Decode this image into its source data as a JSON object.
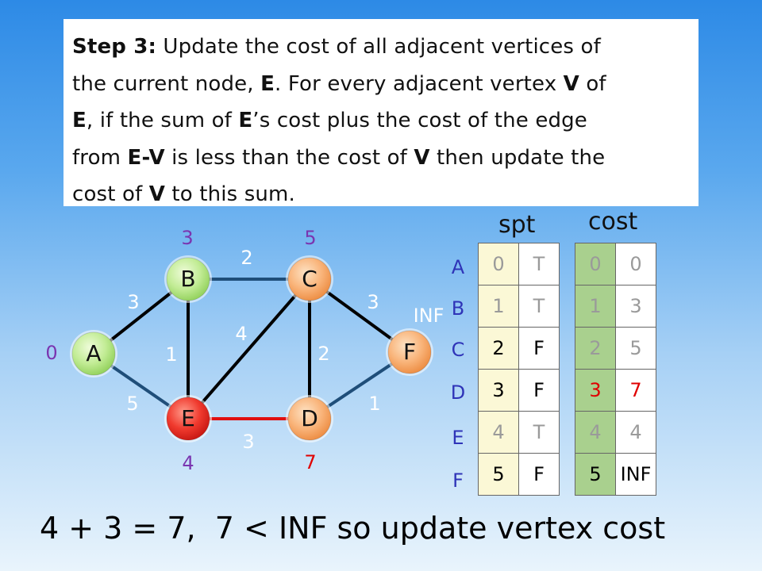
{
  "step": {
    "title": "Step 3:",
    "l1_a": " Update the cost of all adjacent vertices of",
    "l2_a": "the current node, ",
    "l2_b": "E",
    "l2_c": ". For every adjacent vertex ",
    "l2_d": "V",
    "l2_e": " of",
    "l3_a": "E",
    "l3_b": ", if the sum of ",
    "l3_c": "E",
    "l3_d": "’s cost plus the cost of the edge",
    "l4_a": "from ",
    "l4_b": "E-V",
    "l4_c": " is less than the cost of ",
    "l4_d": "V",
    "l4_e": " then update the",
    "l5_a": "cost of ",
    "l5_b": "V",
    "l5_c": " to this sum."
  },
  "graph": {
    "nodes": [
      {
        "id": "A",
        "cost": "0"
      },
      {
        "id": "B",
        "cost": "3"
      },
      {
        "id": "C",
        "cost": "5"
      },
      {
        "id": "D",
        "cost": "7"
      },
      {
        "id": "E",
        "cost": "4"
      },
      {
        "id": "F",
        "cost": "INF"
      }
    ],
    "edges": [
      {
        "from": "A",
        "to": "B",
        "weight": "3"
      },
      {
        "from": "A",
        "to": "E",
        "weight": "5"
      },
      {
        "from": "B",
        "to": "C",
        "weight": "2"
      },
      {
        "from": "B",
        "to": "E",
        "weight": "1"
      },
      {
        "from": "E",
        "to": "C",
        "weight": "4"
      },
      {
        "from": "C",
        "to": "D",
        "weight": "2"
      },
      {
        "from": "C",
        "to": "F",
        "weight": "3"
      },
      {
        "from": "E",
        "to": "D",
        "weight": "3"
      },
      {
        "from": "D",
        "to": "F",
        "weight": "1"
      }
    ],
    "colors": {
      "visited_node": "#b8e88a",
      "unvisited_node": "#f8b070",
      "current_node": "#ee2a2a",
      "highlight_edge": "#e01010",
      "updated_value": "#e00000",
      "node_cost": "#7a35b0",
      "weight_label": "#ffffff"
    }
  },
  "spt": {
    "header": "spt",
    "rows": [
      {
        "label": "A",
        "index": "0",
        "flag": "T"
      },
      {
        "label": "B",
        "index": "1",
        "flag": "T"
      },
      {
        "label": "C",
        "index": "2",
        "flag": "F"
      },
      {
        "label": "D",
        "index": "3",
        "flag": "F"
      },
      {
        "label": "E",
        "index": "4",
        "flag": "T"
      },
      {
        "label": "F",
        "index": "5",
        "flag": "F"
      }
    ]
  },
  "cost": {
    "header": "cost",
    "rows": [
      {
        "index": "0",
        "value": "0"
      },
      {
        "index": "1",
        "value": "3"
      },
      {
        "index": "2",
        "value": "5"
      },
      {
        "index": "3",
        "value": "7"
      },
      {
        "index": "4",
        "value": "4"
      },
      {
        "index": "5",
        "value": "INF"
      }
    ]
  },
  "footer": "4 + 3 = 7,  7 < INF so update vertex cost"
}
